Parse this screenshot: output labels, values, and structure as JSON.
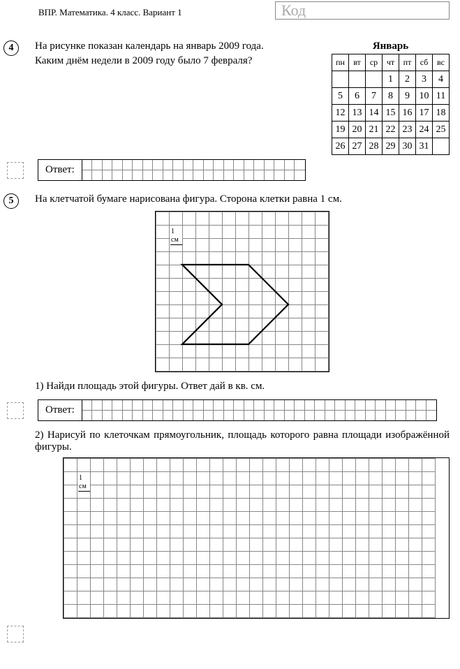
{
  "header": {
    "title": "ВПР. Математика. 4 класс. Вариант 1",
    "code_placeholder": "Код"
  },
  "q4": {
    "number": "4",
    "text_line1": "На рисунке показан календарь на январь 2009 года.",
    "text_line2": "Каким днём недели в 2009 году было 7 февраля?",
    "calendar": {
      "title": "Январь",
      "weekdays": [
        "пн",
        "вт",
        "ср",
        "чт",
        "пт",
        "сб",
        "вс"
      ],
      "rows": [
        [
          "",
          "",
          "",
          "1",
          "2",
          "3",
          "4"
        ],
        [
          "5",
          "6",
          "7",
          "8",
          "9",
          "10",
          "11"
        ],
        [
          "12",
          "13",
          "14",
          "15",
          "16",
          "17",
          "18"
        ],
        [
          "19",
          "20",
          "21",
          "22",
          "23",
          "24",
          "25"
        ],
        [
          "26",
          "27",
          "28",
          "29",
          "30",
          "31",
          ""
        ]
      ]
    },
    "answer_label": "Ответ:",
    "answer_grid": {
      "cols": 22,
      "rows": 2,
      "cell": 14.5
    }
  },
  "q5": {
    "number": "5",
    "intro": "На клетчатой бумаге нарисована фигура. Сторона клетки равна 1 см.",
    "main_grid": {
      "cols": 13,
      "rows": 12,
      "cell": 19
    },
    "scale_label": "1 см",
    "figure": {
      "points_cells": [
        [
          2,
          4
        ],
        [
          7,
          4
        ],
        [
          10,
          7
        ],
        [
          7,
          10
        ],
        [
          2,
          10
        ],
        [
          5,
          7
        ]
      ],
      "stroke_width": 2.2,
      "stroke_color": "#000000"
    },
    "part1": "1) Найди площадь этой фигуры. Ответ дай в кв. см.",
    "answer_label": "Ответ:",
    "answer_grid": {
      "cols": 35,
      "rows": 2,
      "cell": 14.5
    },
    "part2": "2) Нарисуй по клеточкам прямоугольник, площадь которого равна площади изображённой фигуры.",
    "draw_grid": {
      "cols": 28,
      "rows": 12,
      "cell": 19
    },
    "scale_label2": "1 см"
  }
}
